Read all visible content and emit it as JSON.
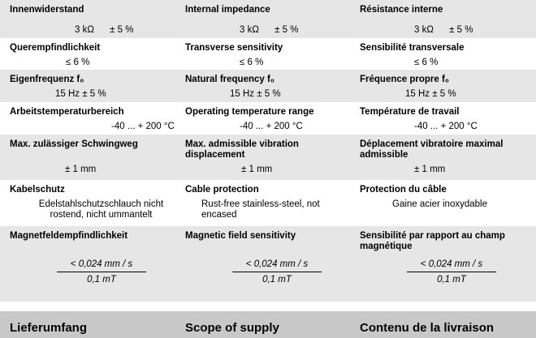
{
  "rows": [
    {
      "cells": [
        {
          "label": "Innenwiderstand",
          "value": "3 kΩ      ± 5 %"
        },
        {
          "label": "Internal impedance",
          "value": "3 kΩ      ± 5 %"
        },
        {
          "label": "Résistance interne",
          "value": "3 kΩ      ± 5 %"
        }
      ]
    },
    {
      "cells": [
        {
          "label": "Querempfindlichkeit",
          "value": "≤ 6 %"
        },
        {
          "label": "Transverse sensitivity",
          "value": "≤ 6 %"
        },
        {
          "label": "Sensibilité transversale",
          "value": "≤ 6 %"
        }
      ]
    },
    {
      "cells": [
        {
          "label": "Eigenfrequenz f₀",
          "value": "15 Hz ± 5 %"
        },
        {
          "label": "Natural frequency f₀",
          "value": "15 Hz ± 5 %"
        },
        {
          "label": "Fréquence propre f₀",
          "value": "15 Hz ± 5 %"
        }
      ]
    },
    {
      "cells": [
        {
          "label": "Arbeitstemperaturbereich",
          "value": "-40 ... + 200 °C"
        },
        {
          "label": "Operating temperature range",
          "value": "-40 ... + 200 °C"
        },
        {
          "label": "Température de travail",
          "value": "-40 ... + 200 °C"
        }
      ]
    },
    {
      "cells": [
        {
          "label": "Max. zulässiger Schwingweg",
          "value": "± 1 mm"
        },
        {
          "label": "Max. admissible vibration displacement",
          "value": "± 1 mm"
        },
        {
          "label": "Déplacement vibratoire maximal admissible",
          "value": "± 1 mm"
        }
      ]
    },
    {
      "cells": [
        {
          "label": "Kabelschutz",
          "value": "Edelstahlschutzschlauch nicht rostend, nicht ummantelt"
        },
        {
          "label": "Cable protection",
          "value": "Rust-free stainless-steel, not encased"
        },
        {
          "label": "Protection du câble",
          "value": "Gaine acier inoxydable"
        }
      ]
    },
    {
      "cells": [
        {
          "label": "Magnetfeldempfindlichkeit",
          "numerator": "< 0,024 mm / s",
          "denominator": "0,1 mT"
        },
        {
          "label": "Magnetic field sensitivity",
          "numerator": "< 0,024 mm / s",
          "denominator": "0,1 mT"
        },
        {
          "label": "Sensibilité par rapport au champ magnétique",
          "numerator": "< 0,024 mm / s",
          "denominator": "0,1 mT"
        }
      ]
    }
  ],
  "scope": {
    "de": "Lieferumfang",
    "en": "Scope of supply",
    "fr": "Contenu de la livraison"
  }
}
